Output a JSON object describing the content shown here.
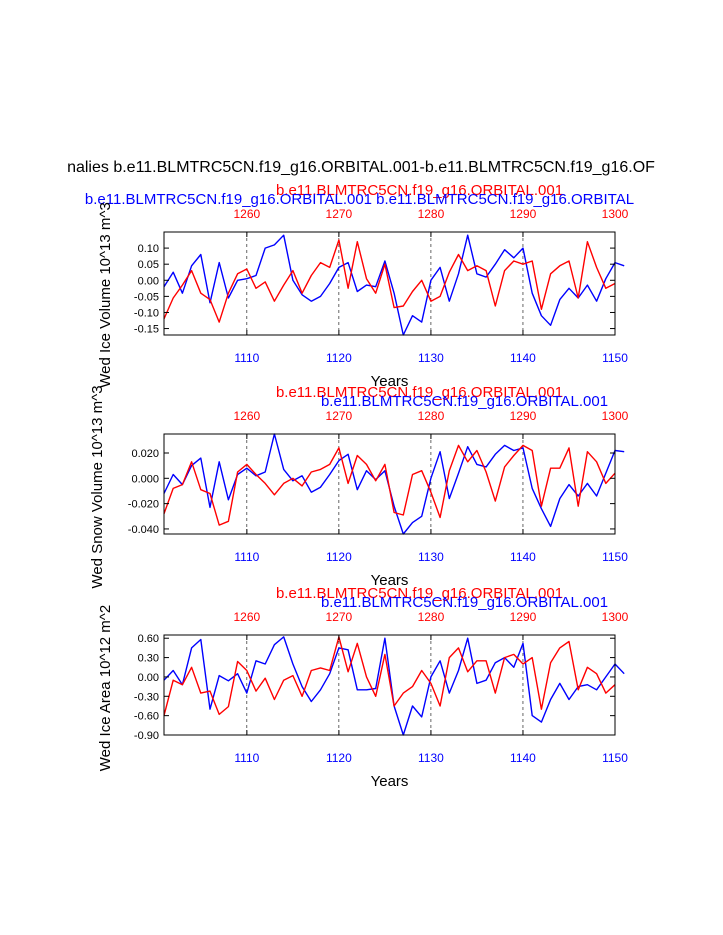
{
  "page": {
    "title": "nalies b.e11.BLMTRC5CN.f19_g16.ORBITAL.001-b.e11.BLMTRC5CN.f19_g16.OF"
  },
  "chart_data": [
    {
      "type": "line",
      "title_blue": "b.e11.BLMTRC5CN.f19_g16.ORBITAL.001 b.e11.BLMTRC5CN.f19_g16.ORBITAL",
      "title_red": "b.e11.BLMTRC5CN.f19_g16.ORBITAL.001",
      "ylabel": "Wed Ice Volume 10^13 m^3",
      "xlabel": "Years",
      "ylim": [
        -0.17,
        0.15
      ],
      "yticks": [
        -0.15,
        -0.1,
        -0.05,
        0.0,
        0.05,
        0.1
      ],
      "ytick_labels": [
        "-0.15",
        "-0.10",
        "-0.05",
        "0.00",
        "0.05",
        "0.10"
      ],
      "bottom_axis": {
        "range": [
          1101,
          1150
        ],
        "ticks": [
          "1110",
          "1120",
          "1130",
          "1140",
          "1150"
        ],
        "color": "#0000ff"
      },
      "top_axis": {
        "range": [
          1251,
          1300
        ],
        "ticks": [
          "1260",
          "1270",
          "1280",
          "1290",
          "1300"
        ],
        "color": "#ff0000"
      },
      "grid_x": [
        1110,
        1120,
        1130,
        1140
      ],
      "series": [
        {
          "color": "#0000ff",
          "x_start": 1101,
          "values": [
            -0.02,
            0.025,
            -0.04,
            0.045,
            0.08,
            -0.07,
            0.055,
            -0.055,
            0.0,
            0.005,
            0.015,
            0.1,
            0.11,
            0.14,
            0.0,
            -0.045,
            -0.065,
            -0.05,
            -0.01,
            0.04,
            0.055,
            -0.035,
            -0.015,
            -0.02,
            0.06,
            -0.04,
            -0.17,
            -0.11,
            -0.13,
            0.0,
            0.04,
            -0.065,
            0.02,
            0.14,
            0.02,
            0.01,
            0.05,
            0.095,
            0.07,
            0.1,
            -0.04,
            -0.11,
            -0.14,
            -0.06,
            -0.025,
            -0.055,
            -0.015,
            -0.065,
            0.005,
            0.055,
            0.045
          ]
        },
        {
          "color": "#ff0000",
          "x_start": 1251,
          "values": [
            -0.12,
            -0.055,
            -0.015,
            0.03,
            -0.04,
            -0.06,
            -0.13,
            -0.04,
            0.02,
            0.035,
            -0.025,
            -0.005,
            -0.065,
            -0.015,
            0.03,
            -0.04,
            0.015,
            0.055,
            0.04,
            0.125,
            -0.025,
            0.12,
            0.005,
            -0.04,
            0.05,
            -0.085,
            -0.08,
            -0.035,
            0.0,
            -0.065,
            -0.05,
            0.025,
            0.08,
            0.03,
            0.045,
            0.03,
            -0.08,
            0.03,
            0.06,
            0.05,
            0.06,
            -0.09,
            0.02,
            0.045,
            0.06,
            -0.055,
            0.12,
            0.04,
            -0.025,
            -0.01
          ]
        }
      ]
    },
    {
      "type": "line",
      "title_blue": "b.e11.BLMTRC5CN.f19_g16.ORBITAL.001",
      "title_red": "b.e11.BLMTRC5CN.f19_g16.ORBITAL.001",
      "ylabel": "Wed Snow Volume 10^13 m^3",
      "xlabel": "Years",
      "ylim": [
        -0.044,
        0.035
      ],
      "yticks": [
        -0.04,
        -0.02,
        0.0,
        0.02
      ],
      "ytick_labels": [
        "-0.040",
        "-0.020",
        "0.000",
        "0.020"
      ],
      "bottom_axis": {
        "range": [
          1101,
          1150
        ],
        "ticks": [
          "1110",
          "1120",
          "1130",
          "1140",
          "1150"
        ],
        "color": "#0000ff"
      },
      "top_axis": {
        "range": [
          1251,
          1300
        ],
        "ticks": [
          "1260",
          "1270",
          "1280",
          "1290",
          "1300"
        ],
        "color": "#ff0000"
      },
      "grid_x": [
        1110,
        1120,
        1130,
        1140
      ],
      "series": [
        {
          "color": "#0000ff",
          "x_start": 1101,
          "values": [
            -0.012,
            0.003,
            -0.005,
            0.01,
            0.016,
            -0.023,
            0.013,
            -0.017,
            0.003,
            0.008,
            0.002,
            0.005,
            0.035,
            0.007,
            -0.002,
            0.002,
            -0.011,
            -0.007,
            0.003,
            0.014,
            0.019,
            -0.009,
            0.006,
            -0.001,
            0.006,
            -0.022,
            -0.044,
            -0.035,
            -0.03,
            0.0,
            0.021,
            -0.016,
            0.004,
            0.025,
            0.011,
            0.009,
            0.019,
            0.026,
            0.022,
            0.024,
            -0.008,
            -0.024,
            -0.038,
            -0.016,
            -0.005,
            -0.014,
            -0.004,
            -0.014,
            0.004,
            0.022,
            0.021
          ]
        },
        {
          "color": "#ff0000",
          "x_start": 1251,
          "values": [
            -0.028,
            -0.008,
            -0.005,
            0.013,
            -0.009,
            -0.012,
            -0.037,
            -0.034,
            0.005,
            0.011,
            0.003,
            -0.004,
            -0.013,
            -0.004,
            0.0,
            -0.006,
            0.005,
            0.007,
            0.011,
            0.024,
            -0.004,
            0.018,
            0.011,
            -0.002,
            0.011,
            -0.027,
            -0.029,
            0.003,
            0.006,
            -0.011,
            -0.031,
            0.006,
            0.026,
            0.013,
            0.022,
            0.005,
            -0.018,
            0.009,
            0.018,
            0.026,
            0.022,
            -0.022,
            0.008,
            0.008,
            0.024,
            -0.022,
            0.021,
            0.013,
            -0.004,
            0.004
          ]
        }
      ]
    },
    {
      "type": "line",
      "title_blue": "b.e11.BLMTRC5CN.f19_g16.ORBITAL.001",
      "title_red": "b.e11.BLMTRC5CN.f19_g16.ORBITAL.001",
      "ylabel": "Wed Ice Area 10^12 m^2",
      "xlabel": "Years",
      "ylim": [
        -0.9,
        0.65
      ],
      "yticks": [
        -0.9,
        -0.6,
        -0.3,
        0.0,
        0.3,
        0.6
      ],
      "ytick_labels": [
        "-0.90",
        "-0.60",
        "-0.30",
        "0.00",
        "0.30",
        "0.60"
      ],
      "bottom_axis": {
        "range": [
          1101,
          1150
        ],
        "ticks": [
          "1110",
          "1120",
          "1130",
          "1140",
          "1150"
        ],
        "color": "#0000ff"
      },
      "top_axis": {
        "range": [
          1251,
          1300
        ],
        "ticks": [
          "1260",
          "1270",
          "1280",
          "1290",
          "1300"
        ],
        "color": "#ff0000"
      },
      "grid_x": [
        1110,
        1120,
        1130,
        1140
      ],
      "series": [
        {
          "color": "#0000ff",
          "x_start": 1101,
          "values": [
            -0.05,
            0.1,
            -0.12,
            0.45,
            0.58,
            -0.5,
            0.02,
            -0.06,
            0.05,
            -0.25,
            0.25,
            0.2,
            0.5,
            0.62,
            0.2,
            -0.15,
            -0.38,
            -0.2,
            0.05,
            0.45,
            0.42,
            -0.2,
            -0.2,
            -0.18,
            0.6,
            -0.45,
            -0.9,
            -0.45,
            -0.62,
            0.0,
            0.25,
            -0.25,
            0.1,
            0.6,
            -0.1,
            -0.05,
            0.22,
            0.3,
            0.15,
            0.52,
            -0.6,
            -0.7,
            -0.35,
            -0.1,
            -0.35,
            -0.15,
            -0.12,
            -0.2,
            0.0,
            0.2,
            0.05
          ]
        },
        {
          "color": "#ff0000",
          "x_start": 1251,
          "values": [
            -0.6,
            -0.05,
            -0.12,
            0.15,
            -0.25,
            -0.22,
            -0.58,
            -0.46,
            0.24,
            0.1,
            -0.22,
            -0.02,
            -0.35,
            -0.05,
            0.02,
            -0.3,
            0.1,
            0.14,
            0.1,
            0.62,
            0.08,
            0.52,
            0.0,
            -0.3,
            0.35,
            -0.45,
            -0.25,
            -0.15,
            0.1,
            -0.1,
            -0.45,
            0.3,
            0.45,
            0.08,
            0.25,
            0.25,
            -0.25,
            0.3,
            0.35,
            0.2,
            0.3,
            -0.5,
            0.22,
            0.45,
            0.55,
            -0.2,
            0.15,
            0.05,
            -0.25,
            -0.12
          ]
        }
      ]
    }
  ]
}
